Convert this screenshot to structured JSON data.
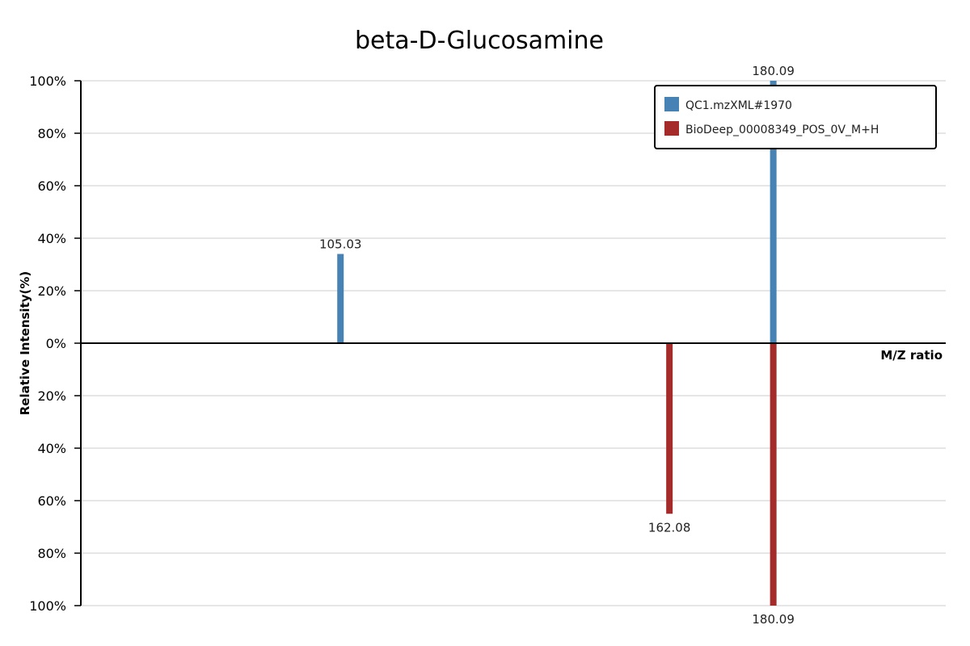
{
  "chart_data": {
    "type": "bar",
    "title": "beta-D-Glucosamine",
    "xlabel": "M/Z ratio",
    "ylabel": "Relative Intensity(%)",
    "yticks": [
      "100%",
      "80%",
      "60%",
      "40%",
      "20%",
      "0%",
      "20%",
      "40%",
      "60%",
      "80%",
      "100%"
    ],
    "ylim": [
      -100,
      100
    ],
    "xlim": [
      60,
      210
    ],
    "grid": true,
    "legend_position": "top-right",
    "series": [
      {
        "name": "QC1.mzXML#1970",
        "color": "#4682b4",
        "direction": "up",
        "peaks": [
          {
            "mz": 105.03,
            "label": "105.03",
            "intensity": 34
          },
          {
            "mz": 180.09,
            "label": "180.09",
            "intensity": 100
          }
        ]
      },
      {
        "name": "BioDeep_00008349_POS_0V_M+H",
        "color": "#a52a2a",
        "direction": "down",
        "peaks": [
          {
            "mz": 162.08,
            "label": "162.08",
            "intensity": 65
          },
          {
            "mz": 180.09,
            "label": "180.09",
            "intensity": 100
          }
        ]
      }
    ]
  }
}
